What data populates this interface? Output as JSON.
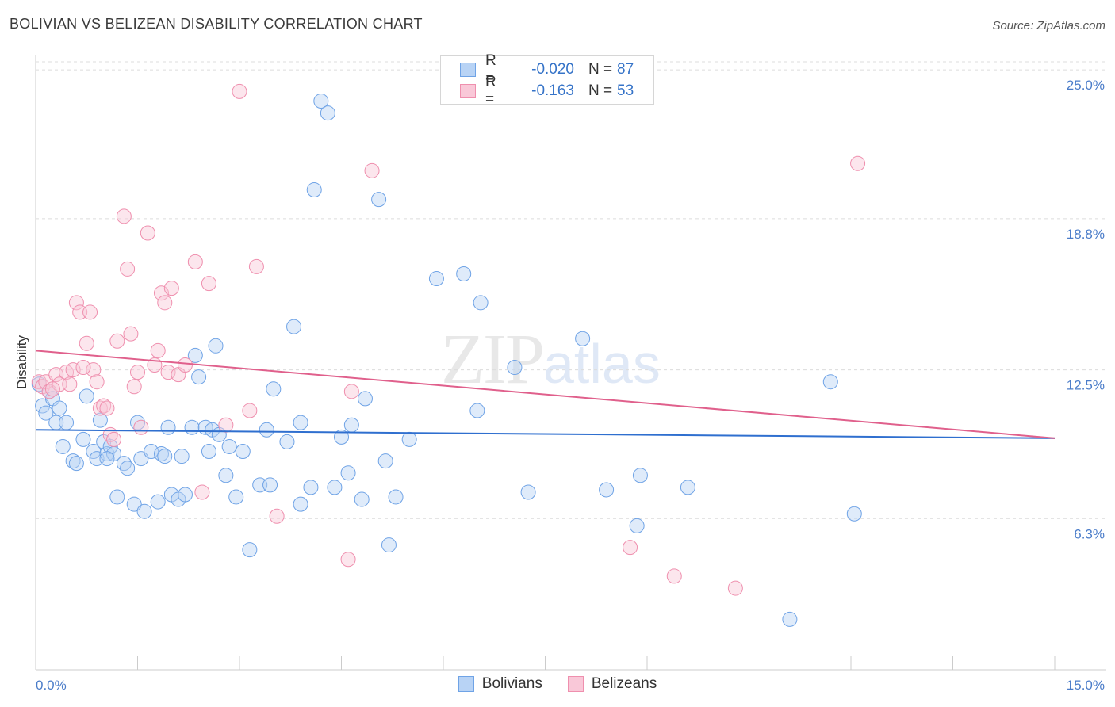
{
  "header": {
    "title": "BOLIVIAN VS BELIZEAN DISABILITY CORRELATION CHART",
    "source": "Source: ZipAtlas.com"
  },
  "watermark": {
    "zip": "ZIP",
    "atlas": "atlas"
  },
  "stats": [
    {
      "r_label": "R =",
      "r_value": "-0.020",
      "n_label": "N =",
      "n_value": "87",
      "color": "#6fa3e6",
      "fill": "#b8d3f5"
    },
    {
      "r_label": "R =",
      "r_value": "-0.163",
      "n_label": "N =",
      "n_value": "53",
      "color": "#ef8fae",
      "fill": "#f9c8d8"
    }
  ],
  "legend": [
    {
      "label": "Bolivians",
      "color": "#6fa3e6",
      "fill": "#b8d3f5"
    },
    {
      "label": "Belizeans",
      "color": "#ef8fae",
      "fill": "#f9c8d8"
    }
  ],
  "chart_data": {
    "type": "scatter",
    "title": "BOLIVIAN VS BELIZEAN DISABILITY CORRELATION CHART",
    "xlabel": "",
    "ylabel": "Disability",
    "xlim": [
      0,
      15
    ],
    "ylim": [
      0,
      25.6
    ],
    "x_tick_labels": [
      "0.0%",
      "15.0%"
    ],
    "y_ticks": [
      6.3,
      12.5,
      18.8,
      25.0
    ],
    "y_tick_labels": [
      "6.3%",
      "12.5%",
      "18.8%",
      "25.0%"
    ],
    "grid": "horizontal dashed",
    "series": [
      {
        "name": "Bolivians",
        "color": "#6fa3e6",
        "trend": {
          "x": [
            0,
            15
          ],
          "y": [
            10.0,
            9.65
          ]
        },
        "points": [
          [
            0.05,
            11.9
          ],
          [
            0.1,
            11.0
          ],
          [
            0.15,
            10.7
          ],
          [
            0.2,
            11.6
          ],
          [
            0.25,
            11.3
          ],
          [
            0.3,
            10.3
          ],
          [
            0.35,
            10.9
          ],
          [
            0.45,
            10.3
          ],
          [
            0.4,
            9.3
          ],
          [
            0.55,
            8.7
          ],
          [
            0.6,
            8.6
          ],
          [
            0.7,
            9.6
          ],
          [
            0.75,
            11.4
          ],
          [
            0.85,
            9.1
          ],
          [
            0.9,
            8.8
          ],
          [
            0.95,
            10.4
          ],
          [
            1.0,
            9.5
          ],
          [
            1.05,
            9.0
          ],
          [
            1.1,
            9.3
          ],
          [
            1.15,
            9.0
          ],
          [
            1.2,
            7.2
          ],
          [
            1.3,
            8.6
          ],
          [
            1.35,
            8.4
          ],
          [
            1.45,
            6.9
          ],
          [
            1.5,
            10.3
          ],
          [
            1.55,
            8.8
          ],
          [
            1.6,
            6.6
          ],
          [
            1.7,
            9.1
          ],
          [
            1.8,
            7.0
          ],
          [
            1.85,
            9.0
          ],
          [
            1.9,
            8.9
          ],
          [
            1.95,
            10.1
          ],
          [
            2.0,
            7.3
          ],
          [
            2.1,
            7.1
          ],
          [
            2.15,
            8.9
          ],
          [
            2.2,
            7.3
          ],
          [
            2.3,
            10.1
          ],
          [
            2.35,
            13.1
          ],
          [
            2.4,
            12.2
          ],
          [
            2.5,
            10.1
          ],
          [
            2.55,
            9.1
          ],
          [
            2.6,
            10.0
          ],
          [
            2.65,
            13.5
          ],
          [
            2.7,
            9.8
          ],
          [
            2.8,
            8.1
          ],
          [
            2.85,
            9.3
          ],
          [
            2.95,
            7.2
          ],
          [
            3.05,
            9.1
          ],
          [
            3.15,
            5.0
          ],
          [
            3.3,
            7.7
          ],
          [
            3.4,
            10.0
          ],
          [
            3.45,
            7.7
          ],
          [
            3.5,
            11.7
          ],
          [
            3.7,
            9.5
          ],
          [
            3.8,
            14.3
          ],
          [
            3.9,
            10.3
          ],
          [
            3.9,
            6.9
          ],
          [
            4.05,
            7.6
          ],
          [
            4.1,
            20.0
          ],
          [
            4.2,
            23.7
          ],
          [
            4.3,
            23.2
          ],
          [
            4.4,
            7.6
          ],
          [
            4.5,
            9.7
          ],
          [
            4.6,
            8.2
          ],
          [
            4.65,
            10.2
          ],
          [
            4.8,
            7.1
          ],
          [
            4.85,
            11.3
          ],
          [
            5.05,
            19.6
          ],
          [
            5.15,
            8.7
          ],
          [
            5.2,
            5.2
          ],
          [
            5.3,
            7.2
          ],
          [
            5.5,
            9.6
          ],
          [
            5.9,
            16.3
          ],
          [
            6.3,
            16.5
          ],
          [
            6.5,
            10.8
          ],
          [
            6.55,
            15.3
          ],
          [
            7.05,
            12.6
          ],
          [
            7.25,
            7.4
          ],
          [
            8.05,
            13.8
          ],
          [
            8.4,
            7.5
          ],
          [
            8.85,
            6.0
          ],
          [
            8.9,
            8.1
          ],
          [
            9.6,
            7.6
          ],
          [
            11.1,
            2.1
          ],
          [
            11.7,
            12.0
          ],
          [
            12.05,
            6.5
          ],
          [
            1.05,
            8.8
          ]
        ]
      },
      {
        "name": "Belizeans",
        "color": "#ef8fae",
        "trend": {
          "x": [
            0,
            15
          ],
          "y": [
            13.3,
            9.65
          ]
        },
        "points": [
          [
            0.05,
            12.0
          ],
          [
            0.1,
            11.8
          ],
          [
            0.15,
            12.0
          ],
          [
            0.2,
            11.6
          ],
          [
            0.3,
            12.3
          ],
          [
            0.35,
            11.9
          ],
          [
            0.45,
            12.4
          ],
          [
            0.55,
            12.5
          ],
          [
            0.6,
            15.3
          ],
          [
            0.65,
            14.9
          ],
          [
            0.75,
            13.6
          ],
          [
            0.8,
            14.9
          ],
          [
            0.85,
            12.5
          ],
          [
            0.9,
            12.0
          ],
          [
            0.95,
            10.9
          ],
          [
            1.0,
            11.0
          ],
          [
            1.05,
            10.9
          ],
          [
            1.1,
            9.8
          ],
          [
            1.2,
            13.7
          ],
          [
            1.3,
            18.9
          ],
          [
            1.35,
            16.7
          ],
          [
            1.4,
            14.0
          ],
          [
            1.45,
            11.8
          ],
          [
            1.5,
            12.4
          ],
          [
            1.55,
            10.1
          ],
          [
            1.65,
            18.2
          ],
          [
            1.75,
            12.7
          ],
          [
            1.8,
            13.3
          ],
          [
            1.85,
            15.7
          ],
          [
            1.9,
            15.3
          ],
          [
            1.95,
            12.4
          ],
          [
            2.0,
            15.9
          ],
          [
            2.1,
            12.3
          ],
          [
            2.2,
            12.7
          ],
          [
            2.35,
            17.0
          ],
          [
            2.45,
            7.4
          ],
          [
            2.55,
            16.1
          ],
          [
            2.8,
            10.2
          ],
          [
            3.0,
            24.1
          ],
          [
            3.15,
            10.8
          ],
          [
            3.25,
            16.8
          ],
          [
            3.55,
            6.4
          ],
          [
            4.6,
            4.6
          ],
          [
            4.65,
            11.6
          ],
          [
            4.95,
            20.8
          ],
          [
            8.75,
            5.1
          ],
          [
            9.4,
            3.9
          ],
          [
            10.3,
            3.4
          ],
          [
            12.1,
            21.1
          ],
          [
            0.25,
            11.7
          ],
          [
            0.5,
            11.9
          ],
          [
            0.7,
            12.6
          ],
          [
            1.15,
            9.6
          ]
        ]
      }
    ]
  }
}
